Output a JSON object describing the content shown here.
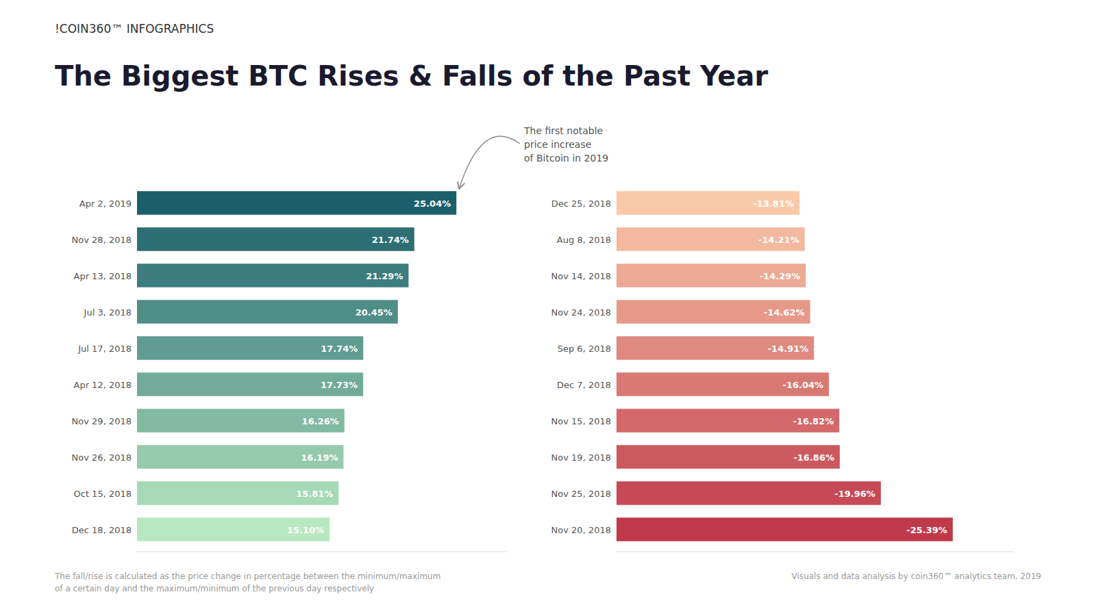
{
  "chart_data": [
    {
      "type": "bar",
      "orientation": "horizontal",
      "title": "The Biggest BTC Rises & Falls of the Past Year",
      "categories": [
        "Apr 2, 2019",
        "Nov 28, 2018",
        "Apr 13, 2018",
        "Jul 3, 2018",
        "Jul 17, 2018",
        "Apr 12, 2018",
        "Nov 29, 2018",
        "Nov 26, 2018",
        "Oct 15, 2018",
        "Dec 18, 2018"
      ],
      "values": [
        25.04,
        21.74,
        21.29,
        20.45,
        17.74,
        17.73,
        16.26,
        16.19,
        15.81,
        15.1
      ],
      "value_labels": [
        "25.04%",
        "21.74%",
        "21.29%",
        "20.45%",
        "17.74%",
        "17.73%",
        "16.26%",
        "16.19%",
        "15.81%",
        "15.10%"
      ],
      "colors": [
        "#1a5f6a",
        "#2c6e74",
        "#3d7d7d",
        "#4f8d87",
        "#609c90",
        "#72ab9a",
        "#83baa3",
        "#95caad",
        "#a6d9b6",
        "#b8e8c0"
      ],
      "xlim": [
        0,
        29
      ],
      "data_labels": true,
      "tick_labels": "y",
      "grid": false,
      "annotations": [
        "The first notable\nprice increase\nof Bitcoin in 2019",
        "The fall/rise is calculated as the price change in percentage between the minimum/maximum\nof a certain day and the maximum/minimum of the previous day respectively",
        "Visuals and data analysis by coin360™ analytics team, 2019",
        "!COIN360™  INFOGRAPHICS"
      ]
    },
    {
      "type": "bar",
      "orientation": "horizontal",
      "categories": [
        "Dec 25, 2018",
        "Aug 8, 2018",
        "Nov 14, 2018",
        "Nov 24, 2018",
        "Sep 6, 2018",
        "Dec 7, 2018",
        "Nov 15, 2018",
        "Nov 19, 2018",
        "Nov 25, 2018",
        "Nov 20, 2018"
      ],
      "values": [
        -13.81,
        -14.21,
        -14.29,
        -14.62,
        -14.91,
        -16.04,
        -16.82,
        -16.86,
        -19.96,
        -25.39
      ],
      "value_labels": [
        "-13.81%",
        "-14.21%",
        "-14.29%",
        "-14.62%",
        "-14.91%",
        "-16.04%",
        "-16.82%",
        "-16.86%",
        "-19.96%",
        "-25.39%"
      ],
      "colors": [
        "#f9c9a8",
        "#f3b99e",
        "#eca993",
        "#e69989",
        "#e0897f",
        "#d97974",
        "#d3696a",
        "#cd5960",
        "#c64955",
        "#c0394b"
      ],
      "xlim": [
        0,
        -30
      ],
      "data_labels": true,
      "tick_labels": "y",
      "grid": false
    }
  ]
}
